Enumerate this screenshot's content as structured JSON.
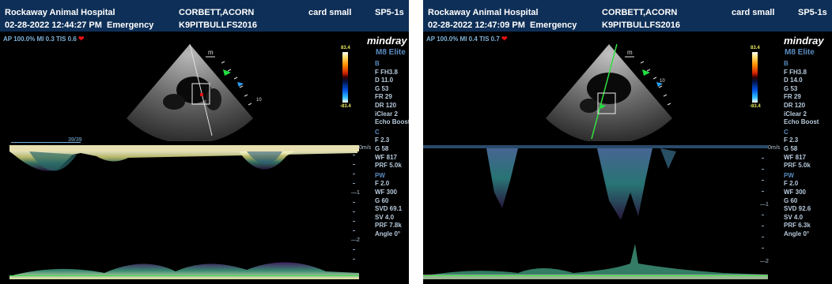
{
  "panels": [
    {
      "header": {
        "hospital": "Rockaway Animal Hospital",
        "patient": "CORBETT,ACORN",
        "preset": "card small",
        "probe": "SP5-1s",
        "datetime": "02-28-2022 12:44:27 PM",
        "exam": "Emergency",
        "patient_id": "K9PITBULLFS2016"
      },
      "acoustic": "AP 100.0%  MI 0.3  TIS 0.6",
      "brand": "mindray",
      "model": "M8 Elite",
      "colorbar": {
        "top": "83.4",
        "bottom": "-83.4"
      },
      "scroll_indicator": "39/39",
      "depth_marker": "10",
      "b_params": [
        "F FH3.8",
        "D 11.0",
        "G 53",
        "FR 29",
        "DR 120",
        "iClear 2",
        "Echo Boost"
      ],
      "c_params": [
        "F 2.3",
        "G 58",
        "WF 817",
        "PRF 5.0k"
      ],
      "pw_params": [
        "F 2.0",
        "WF 300",
        "G 60",
        "SVD 69.1",
        "SV 4.0",
        "PRF 7.8k",
        "Angle 0°"
      ],
      "scale": {
        "unit": "0m/s",
        "mark1": "—1",
        "mark2": "—2"
      }
    },
    {
      "header": {
        "hospital": "Rockaway Animal Hospital",
        "patient": "CORBETT,ACORN",
        "preset": "card small",
        "probe": "SP5-1s",
        "datetime": "02-28-2022 12:47:09 PM",
        "exam": "Emergency",
        "patient_id": "K9PITBULLFS2016"
      },
      "acoustic": "AP 100.0%  MI 0.4  TIS 0.7",
      "brand": "mindray",
      "model": "M8 Elite",
      "colorbar": {
        "top": "83.4",
        "bottom": "-83.4"
      },
      "scroll_indicator": "",
      "depth_marker": "10",
      "b_params": [
        "F FH3.8",
        "D 14.0",
        "G 53",
        "FR 29",
        "DR 120",
        "iClear 2",
        "Echo Boost"
      ],
      "c_params": [
        "F 2.3",
        "G 58",
        "WF 817",
        "PRF 5.0k"
      ],
      "pw_params": [
        "F 2.0",
        "WF 300",
        "G 60",
        "SVD 92.6",
        "SV 4.0",
        "PRF 6.3k",
        "Angle 0°"
      ],
      "scale": {
        "unit": "0m/s",
        "mark1": "—1",
        "mark2": "—2"
      }
    }
  ],
  "section_labels": {
    "b": "B",
    "c": "C",
    "pw": "PW"
  },
  "probe_mark": "m",
  "colors": {
    "header_bg": "#0e2f57",
    "param_text": "#b6c9db",
    "section_text": "#5a8cc0",
    "heart": "#e61010",
    "green_line": "#35e04a"
  }
}
